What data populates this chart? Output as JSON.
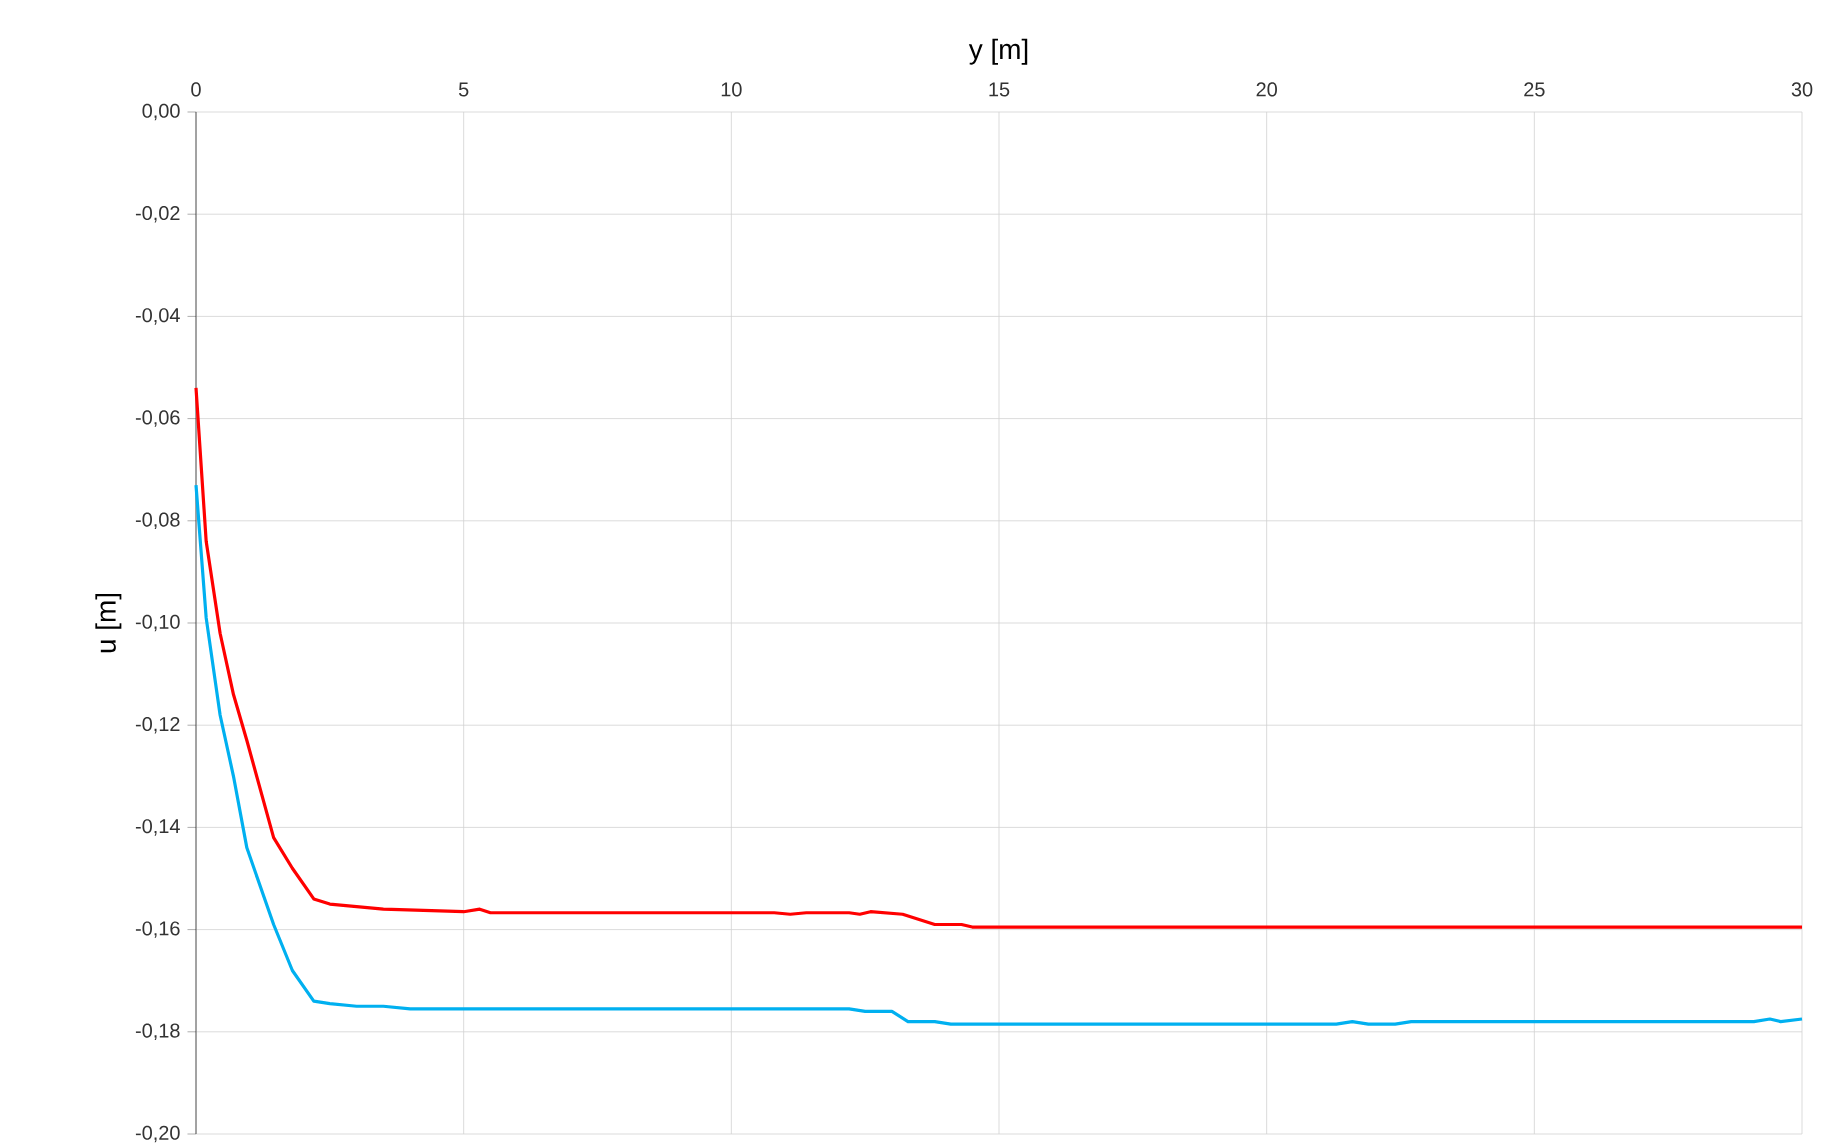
{
  "chart_data": {
    "type": "line",
    "xlabel": "y [m]",
    "ylabel": "u [m]",
    "xlim": [
      0,
      30
    ],
    "xticks": [
      0,
      5,
      10,
      15,
      20,
      25,
      30
    ],
    "ylim": [
      -0.2,
      0
    ],
    "yticks": [
      {
        "value": 0,
        "label": "0,00"
      },
      {
        "value": -0.02,
        "label": "-0,02"
      },
      {
        "value": -0.04,
        "label": "-0,04"
      },
      {
        "value": -0.06,
        "label": "-0,06"
      },
      {
        "value": -0.08,
        "label": "-0,08"
      },
      {
        "value": -0.1,
        "label": "-0,10"
      },
      {
        "value": -0.12,
        "label": "-0,12"
      },
      {
        "value": -0.14,
        "label": "-0,14"
      },
      {
        "value": -0.16,
        "label": "-0,16"
      },
      {
        "value": -0.18,
        "label": "-0,18"
      },
      {
        "value": -0.2,
        "label": "-0,20"
      }
    ],
    "grid": true,
    "marker": "none",
    "line_style": "solid",
    "series": [
      {
        "color": "#ff0000",
        "x": [
          0,
          0.19,
          0.45,
          0.7,
          0.95,
          1.45,
          1.8,
          2.2,
          2.5,
          3,
          3.5,
          5,
          5.3,
          5.5,
          10.8,
          11.1,
          11.4,
          12.2,
          12.4,
          12.6,
          13.2,
          13.8,
          14.3,
          14.5,
          30
        ],
        "values": [
          -0.054,
          -0.084,
          -0.102,
          -0.114,
          -0.123,
          -0.142,
          -0.148,
          -0.154,
          -0.155,
          -0.1555,
          -0.156,
          -0.1565,
          -0.156,
          -0.1567,
          -0.1567,
          -0.157,
          -0.1567,
          -0.1567,
          -0.157,
          -0.1565,
          -0.157,
          -0.159,
          -0.159,
          -0.1595,
          -0.1595
        ]
      },
      {
        "color": "#00b0f0",
        "x": [
          0,
          0.19,
          0.45,
          0.7,
          0.95,
          1.45,
          1.8,
          2.2,
          2.5,
          3,
          3.5,
          4,
          5,
          12.2,
          12.5,
          13,
          13.3,
          13.8,
          14.1,
          21.3,
          21.6,
          21.9,
          22.4,
          22.7,
          29.1,
          29.4,
          29.6,
          30
        ],
        "values": [
          -0.073,
          -0.099,
          -0.118,
          -0.13,
          -0.144,
          -0.159,
          -0.168,
          -0.174,
          -0.1745,
          -0.175,
          -0.175,
          -0.1755,
          -0.1755,
          -0.1755,
          -0.176,
          -0.176,
          -0.178,
          -0.178,
          -0.1785,
          -0.1785,
          -0.178,
          -0.1785,
          -0.1785,
          -0.178,
          -0.178,
          -0.1775,
          -0.178,
          -0.1775
        ]
      }
    ]
  }
}
